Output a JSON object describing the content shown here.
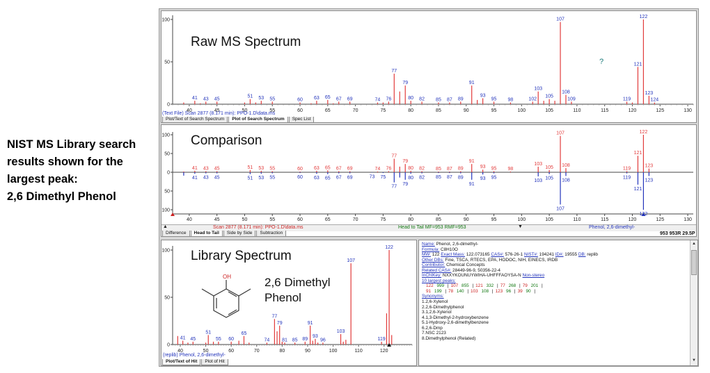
{
  "annotation": {
    "lines": [
      "NIST MS Library search",
      "results shown for the",
      "largest peak:",
      "2,6 Dimethyl Phenol"
    ]
  },
  "colors": {
    "raw": "#e23b3b",
    "label": "#2233bb",
    "library": "#2233bb",
    "axis": "#444444"
  },
  "raw_panel": {
    "title": "Raw MS Spectrum",
    "status": "(Text File) Scan 2877 (8.171 min): PPO-1.D\\data.ms",
    "tabs": [
      {
        "label": "Plot/Text of Search Spectrum",
        "active": false
      },
      {
        "label": "Plot of Search Spectrum",
        "active": true
      },
      {
        "label": "Spec List",
        "active": false
      }
    ],
    "question_mark": "?"
  },
  "comparison_panel": {
    "title": "Comparison",
    "status_left": "Scan 2877 (8.171 min): PPO-1.D\\data.ms",
    "status_mid": "Head to Tail MF=953 RMF=953",
    "status_right": "Phenol, 2,6-dimethyl-",
    "status_score": "953 953R 29.5P",
    "tabs": [
      {
        "label": "Difference",
        "active": false
      },
      {
        "label": "Head to Tail",
        "active": true
      },
      {
        "label": "Side by Side",
        "active": false
      },
      {
        "label": "Subtraction",
        "active": false
      }
    ]
  },
  "library_panel": {
    "title": "Library Spectrum",
    "compound_label": [
      "2,6 Dimethyl",
      "Phenol"
    ],
    "oh_label": "OH",
    "status": "(replib) Phenol, 2,6-dimethyl-",
    "tabs": [
      {
        "label": "Plot/Text of Hit",
        "active": true
      },
      {
        "label": "Plot of Hit",
        "active": false
      }
    ]
  },
  "hit_info": {
    "rows": [
      [
        {
          "k": "Name:",
          "v": " Phenol, 2,6-dimethyl-"
        }
      ],
      [
        {
          "k": "Formula:",
          "v": " C8H10O"
        }
      ],
      [
        {
          "k": "MW:",
          "v": " 122 "
        },
        {
          "k": "Exact Mass:",
          "v": " 122.073165 "
        },
        {
          "k": "CAS#:",
          "v": " 576-26-1 "
        },
        {
          "k": "NIST#:",
          "v": " 194241 "
        },
        {
          "k": "ID#:",
          "v": " 19555 "
        },
        {
          "k": "DB:",
          "v": " replib"
        }
      ],
      [
        {
          "k": "Other DBs:",
          "v": " Fine, TSCA, RTECS, EPA, HODOC, NIH, EINECS, IRDB"
        }
      ],
      [
        {
          "k": "Contributor:",
          "v": " Chemical Concepts"
        }
      ],
      [
        {
          "k": "Related CAS#:",
          "v": " 28449-96-9, 50356-22-4"
        }
      ],
      [
        {
          "k": "InChIKey:",
          "v": " NXXYKOUNUYWIHA-UHFFFAOYSA-N "
        },
        {
          "k": "Non-stereo",
          "v": ""
        }
      ],
      [
        {
          "k": "10 largest peaks:",
          "v": ""
        }
      ]
    ],
    "peak_rows": [
      [
        [
          "122",
          "999"
        ],
        [
          "107",
          "855"
        ],
        [
          "121",
          "332"
        ],
        [
          "77",
          "268"
        ],
        [
          "79",
          "201"
        ]
      ],
      [
        [
          "91",
          "199"
        ],
        [
          "78",
          "140"
        ],
        [
          "103",
          "108"
        ],
        [
          "123",
          "96"
        ],
        [
          "39",
          "90"
        ]
      ]
    ],
    "synonyms_label": "Synonyms:",
    "synonyms": [
      "1.2,6-Xylenol",
      "2.2,6-Dimethylphenol",
      "3.1,2,6-Xylenol",
      "4.1,3-Dimethyl-2-hydroxybenzene",
      "5.1-Hydroxy-2,6-dimethylbenzene",
      "6.2,6-Dmp",
      "7.NSC 2123",
      "8.Dimethylphenol (Related)"
    ]
  },
  "chart_data": [
    {
      "type": "bar",
      "name_hint": "raw",
      "xlim": [
        37,
        131
      ],
      "ylim": [
        0,
        100
      ],
      "xticks": [
        40,
        45,
        50,
        55,
        60,
        65,
        70,
        75,
        80,
        85,
        90,
        95,
        100,
        105,
        110,
        115,
        120,
        125,
        130
      ],
      "yticks": [
        0,
        50,
        100
      ],
      "peaks": [
        [
          39,
          2
        ],
        [
          41,
          4
        ],
        [
          42,
          1
        ],
        [
          43,
          3
        ],
        [
          45,
          3
        ],
        [
          50,
          2
        ],
        [
          51,
          6
        ],
        [
          52,
          2
        ],
        [
          53,
          4
        ],
        [
          55,
          3
        ],
        [
          60,
          2
        ],
        [
          62,
          1
        ],
        [
          63,
          4
        ],
        [
          65,
          5
        ],
        [
          66,
          1
        ],
        [
          67,
          3
        ],
        [
          69,
          3
        ],
        [
          74,
          2
        ],
        [
          75,
          2
        ],
        [
          76,
          3
        ],
        [
          77,
          36
        ],
        [
          78,
          15
        ],
        [
          79,
          22
        ],
        [
          80,
          4
        ],
        [
          82,
          3
        ],
        [
          85,
          2
        ],
        [
          87,
          2
        ],
        [
          89,
          3
        ],
        [
          91,
          22
        ],
        [
          92,
          5
        ],
        [
          93,
          7
        ],
        [
          95,
          3
        ],
        [
          98,
          2
        ],
        [
          102,
          3
        ],
        [
          103,
          15
        ],
        [
          104,
          4
        ],
        [
          105,
          6
        ],
        [
          106,
          4
        ],
        [
          107,
          97
        ],
        [
          108,
          11
        ],
        [
          109,
          3
        ],
        [
          119,
          3
        ],
        [
          120,
          2
        ],
        [
          121,
          44
        ],
        [
          122,
          100
        ],
        [
          123,
          10
        ],
        [
          124,
          2
        ]
      ],
      "labels": [
        [
          41,
          4
        ],
        [
          43,
          3
        ],
        [
          45,
          3
        ],
        [
          51,
          6
        ],
        [
          53,
          4
        ],
        [
          55,
          3
        ],
        [
          60,
          2
        ],
        [
          63,
          4
        ],
        [
          65,
          5
        ],
        [
          67,
          3
        ],
        [
          69,
          3
        ],
        [
          74,
          2
        ],
        [
          76,
          3
        ],
        [
          77,
          36
        ],
        [
          79,
          22
        ],
        [
          80,
          4
        ],
        [
          82,
          3
        ],
        [
          85,
          2
        ],
        [
          87,
          2
        ],
        [
          89,
          3
        ],
        [
          91,
          22
        ],
        [
          93,
          7
        ],
        [
          95,
          3
        ],
        [
          98,
          2
        ],
        [
          102,
          3
        ],
        [
          103,
          15
        ],
        [
          105,
          6
        ],
        [
          107,
          97
        ],
        [
          108,
          11
        ],
        [
          109,
          3
        ],
        [
          119,
          3
        ],
        [
          121,
          44
        ],
        [
          122,
          100
        ],
        [
          123,
          10
        ],
        [
          124,
          2
        ]
      ]
    },
    {
      "type": "bar",
      "name_hint": "comparison head-to-tail",
      "xlim": [
        37,
        131
      ],
      "ylim": [
        -100,
        100
      ],
      "xticks": [
        40,
        45,
        50,
        55,
        60,
        65,
        70,
        75,
        80,
        85,
        90,
        95,
        100,
        105,
        110,
        115,
        120,
        125,
        130
      ],
      "yticks": [
        100,
        50,
        0,
        50,
        100
      ],
      "upper_peaks": [
        [
          39,
          2
        ],
        [
          41,
          4
        ],
        [
          43,
          3
        ],
        [
          45,
          3
        ],
        [
          51,
          6
        ],
        [
          53,
          4
        ],
        [
          55,
          3
        ],
        [
          60,
          2
        ],
        [
          63,
          4
        ],
        [
          65,
          5
        ],
        [
          67,
          3
        ],
        [
          69,
          3
        ],
        [
          74,
          2
        ],
        [
          76,
          3
        ],
        [
          77,
          36
        ],
        [
          78,
          15
        ],
        [
          79,
          22
        ],
        [
          80,
          4
        ],
        [
          82,
          3
        ],
        [
          85,
          2
        ],
        [
          87,
          2
        ],
        [
          89,
          3
        ],
        [
          91,
          22
        ],
        [
          93,
          7
        ],
        [
          95,
          3
        ],
        [
          98,
          2
        ],
        [
          103,
          15
        ],
        [
          105,
          6
        ],
        [
          107,
          97
        ],
        [
          108,
          11
        ],
        [
          119,
          3
        ],
        [
          121,
          44
        ],
        [
          122,
          100
        ],
        [
          123,
          10
        ]
      ],
      "upper_labels": [
        [
          41,
          4
        ],
        [
          43,
          3
        ],
        [
          45,
          3
        ],
        [
          51,
          6
        ],
        [
          53,
          4
        ],
        [
          55,
          3
        ],
        [
          60,
          2
        ],
        [
          63,
          4
        ],
        [
          65,
          5
        ],
        [
          67,
          3
        ],
        [
          69,
          3
        ],
        [
          74,
          2
        ],
        [
          76,
          3
        ],
        [
          77,
          36
        ],
        [
          79,
          22
        ],
        [
          80,
          4
        ],
        [
          82,
          3
        ],
        [
          85,
          2
        ],
        [
          87,
          2
        ],
        [
          89,
          3
        ],
        [
          91,
          22
        ],
        [
          93,
          7
        ],
        [
          95,
          3
        ],
        [
          98,
          2
        ],
        [
          103,
          15
        ],
        [
          105,
          6
        ],
        [
          107,
          97
        ],
        [
          108,
          11
        ],
        [
          119,
          3
        ],
        [
          121,
          44
        ],
        [
          122,
          100
        ],
        [
          123,
          10
        ]
      ],
      "lower_peaks": [
        [
          39,
          9
        ],
        [
          41,
          4
        ],
        [
          43,
          3
        ],
        [
          45,
          3
        ],
        [
          51,
          5
        ],
        [
          53,
          4
        ],
        [
          55,
          3
        ],
        [
          60,
          2
        ],
        [
          63,
          4
        ],
        [
          65,
          5
        ],
        [
          67,
          3
        ],
        [
          69,
          3
        ],
        [
          73,
          1
        ],
        [
          75,
          2
        ],
        [
          77,
          27
        ],
        [
          78,
          14
        ],
        [
          79,
          20
        ],
        [
          80,
          4
        ],
        [
          82,
          3
        ],
        [
          85,
          2
        ],
        [
          87,
          2
        ],
        [
          89,
          3
        ],
        [
          91,
          20
        ],
        [
          93,
          6
        ],
        [
          95,
          3
        ],
        [
          103,
          11
        ],
        [
          105,
          5
        ],
        [
          107,
          86
        ],
        [
          108,
          10
        ],
        [
          119,
          3
        ],
        [
          121,
          33
        ],
        [
          122,
          100
        ],
        [
          123,
          10
        ]
      ],
      "lower_labels": [
        [
          41,
          4
        ],
        [
          43,
          3
        ],
        [
          45,
          3
        ],
        [
          51,
          5
        ],
        [
          53,
          4
        ],
        [
          55,
          3
        ],
        [
          60,
          2
        ],
        [
          63,
          4
        ],
        [
          65,
          5
        ],
        [
          67,
          3
        ],
        [
          69,
          3
        ],
        [
          73,
          1
        ],
        [
          75,
          2
        ],
        [
          77,
          27
        ],
        [
          79,
          20
        ],
        [
          80,
          4
        ],
        [
          82,
          3
        ],
        [
          85,
          2
        ],
        [
          87,
          2
        ],
        [
          89,
          3
        ],
        [
          91,
          20
        ],
        [
          93,
          6
        ],
        [
          95,
          3
        ],
        [
          103,
          11
        ],
        [
          105,
          5
        ],
        [
          107,
          86
        ],
        [
          108,
          10
        ],
        [
          119,
          3
        ],
        [
          121,
          33
        ],
        [
          122,
          100
        ],
        [
          123,
          10
        ]
      ]
    },
    {
      "type": "bar",
      "name_hint": "library",
      "xlim": [
        37,
        131
      ],
      "ylim": [
        0,
        100
      ],
      "xticks": [
        40,
        50,
        60,
        70,
        80,
        90,
        100,
        110,
        120
      ],
      "yticks": [
        0,
        50,
        100
      ],
      "peaks": [
        [
          39,
          9
        ],
        [
          41,
          4
        ],
        [
          43,
          2
        ],
        [
          45,
          3
        ],
        [
          50,
          2
        ],
        [
          51,
          10
        ],
        [
          53,
          3
        ],
        [
          55,
          3
        ],
        [
          60,
          3
        ],
        [
          63,
          4
        ],
        [
          65,
          9
        ],
        [
          67,
          2
        ],
        [
          74,
          2
        ],
        [
          77,
          27
        ],
        [
          78,
          14
        ],
        [
          79,
          20
        ],
        [
          80,
          3
        ],
        [
          81,
          2
        ],
        [
          85,
          2
        ],
        [
          89,
          3
        ],
        [
          91,
          20
        ],
        [
          92,
          4
        ],
        [
          93,
          6
        ],
        [
          94,
          2
        ],
        [
          96,
          2
        ],
        [
          103,
          11
        ],
        [
          104,
          3
        ],
        [
          105,
          5
        ],
        [
          107,
          86
        ],
        [
          119,
          3
        ],
        [
          121,
          33
        ],
        [
          122,
          100
        ],
        [
          123,
          10
        ]
      ],
      "labels": [
        [
          41,
          4
        ],
        [
          45,
          3
        ],
        [
          51,
          10
        ],
        [
          55,
          3
        ],
        [
          60,
          3
        ],
        [
          65,
          9
        ],
        [
          74,
          2
        ],
        [
          77,
          27
        ],
        [
          79,
          20
        ],
        [
          81,
          2
        ],
        [
          85,
          2
        ],
        [
          89,
          3
        ],
        [
          91,
          20
        ],
        [
          93,
          6
        ],
        [
          96,
          2
        ],
        [
          103,
          11
        ],
        [
          107,
          86
        ],
        [
          119,
          3
        ],
        [
          122,
          100
        ]
      ]
    }
  ]
}
